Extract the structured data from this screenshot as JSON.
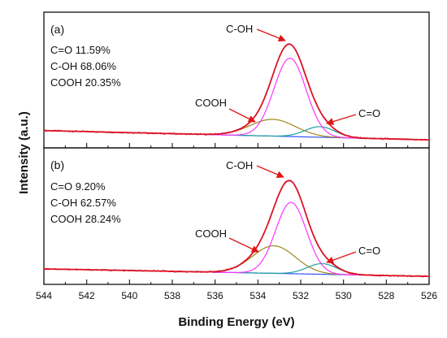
{
  "chart_data": {
    "type": "line",
    "xlabel": "Binding Energy (eV)",
    "ylabel": "Intensity (a.u.)",
    "xlim": [
      544,
      526
    ],
    "x_ticks": [
      "544",
      "542",
      "540",
      "538",
      "536",
      "534",
      "532",
      "530",
      "528",
      "526"
    ],
    "x_reversed": true,
    "y_ticks": false,
    "grid": false,
    "legend": "none",
    "colors": {
      "experimental": "#c8102e",
      "envelope": "#ff2020",
      "c_oh": "#ff33ff",
      "cooh": "#9a8a1c",
      "c_eq_o": "#20a0a0",
      "baseline": "#3355ff",
      "arrow": "#e01515",
      "axis": "#111111"
    },
    "panels": [
      {
        "label": "(a)",
        "stats": [
          {
            "text": "C=O 11.59%"
          },
          {
            "text": "C-OH 68.06%"
          },
          {
            "text": "COOH 20.35%"
          }
        ],
        "peak_labels": {
          "c_oh": "C-OH",
          "cooh": "COOH",
          "c_eq_o": "C=O"
        },
        "baseline": {
          "at_544": 0.1,
          "at_526": 0.025
        },
        "components": [
          {
            "key": "c_oh",
            "center": 532.5,
            "height": 0.63,
            "sigma": 0.75
          },
          {
            "key": "cooh",
            "center": 533.3,
            "height": 0.135,
            "sigma": 1.05
          },
          {
            "key": "c_eq_o",
            "center": 531.1,
            "height": 0.085,
            "sigma": 0.7
          }
        ]
      },
      {
        "label": "(b)",
        "stats": [
          {
            "text": "C=O 9.20%"
          },
          {
            "text": "C-OH 62.57%"
          },
          {
            "text": "COOH 28.24%"
          }
        ],
        "peak_labels": {
          "c_oh": "C-OH",
          "cooh": "COOH",
          "c_eq_o": "C=O"
        },
        "baseline": {
          "at_544": 0.085,
          "at_526": 0.025
        },
        "components": [
          {
            "key": "c_oh",
            "center": 532.45,
            "height": 0.57,
            "sigma": 0.72
          },
          {
            "key": "cooh",
            "center": 533.25,
            "height": 0.22,
            "sigma": 1.0
          },
          {
            "key": "c_eq_o",
            "center": 531.0,
            "height": 0.085,
            "sigma": 0.7
          }
        ]
      }
    ]
  }
}
